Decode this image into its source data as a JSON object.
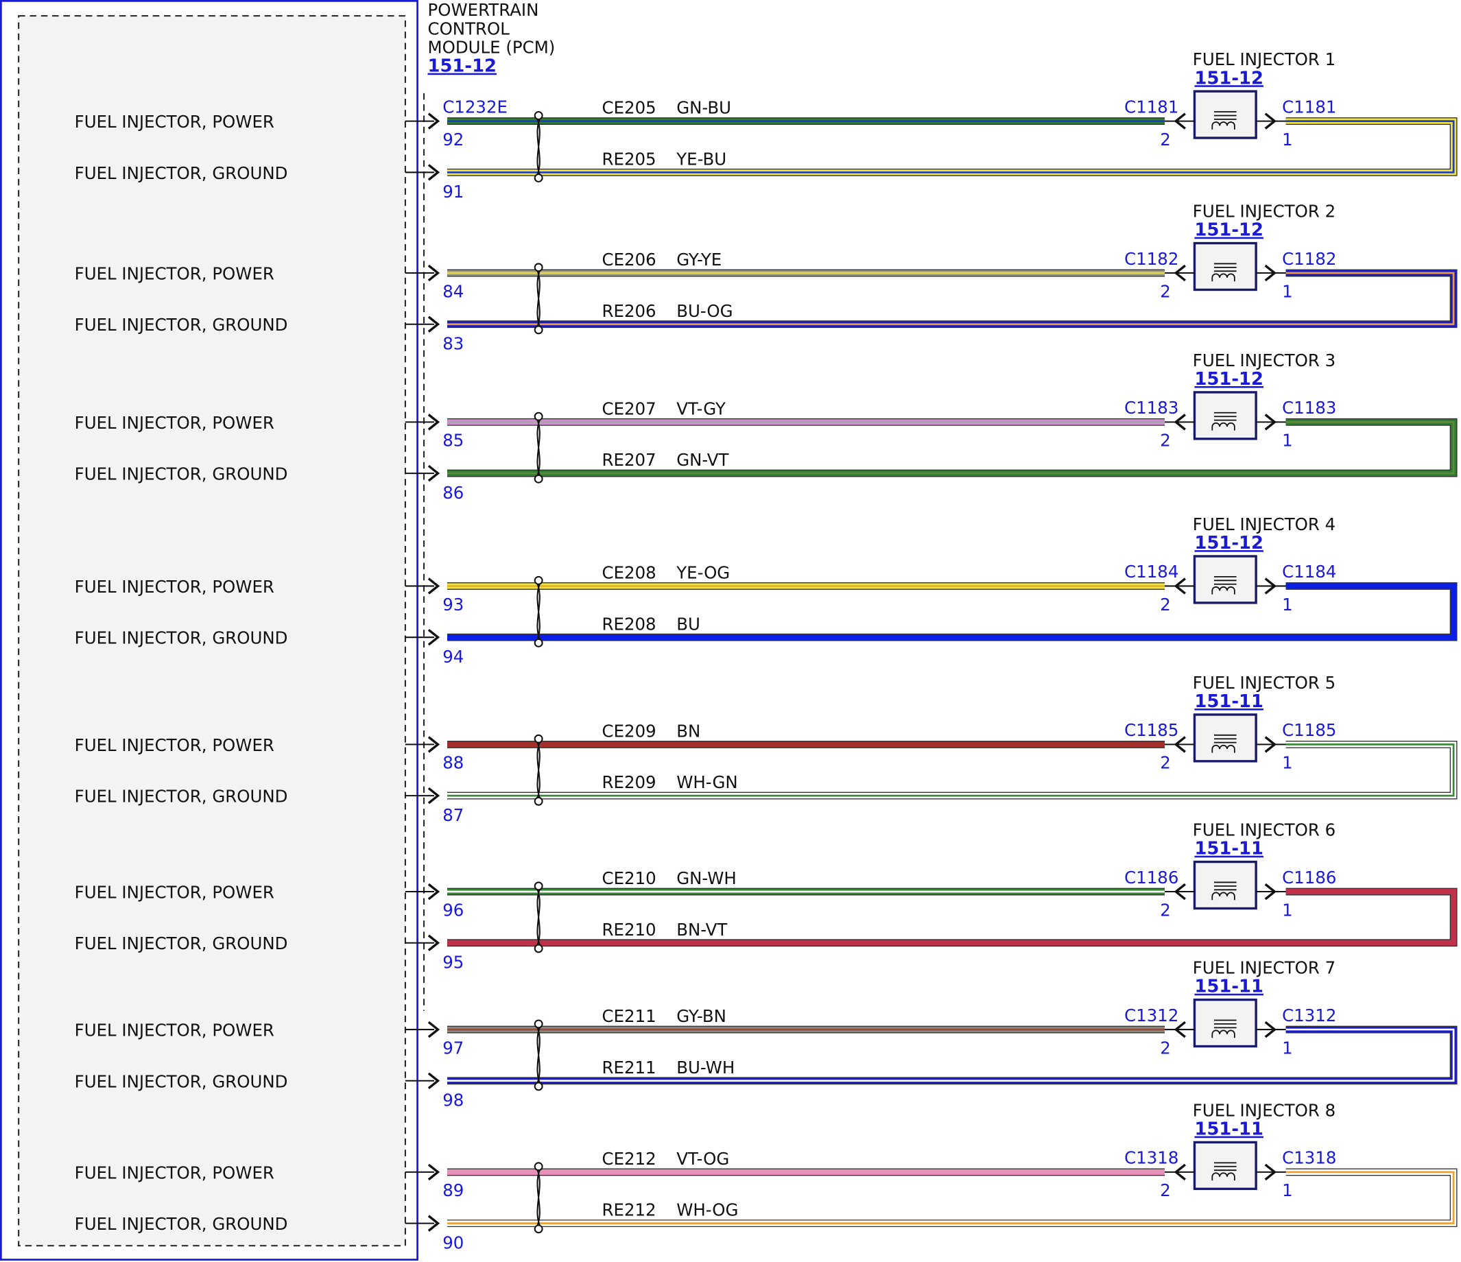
{
  "pcm": {
    "title_lines": [
      "POWERTRAIN",
      "CONTROL",
      "MODULE (PCM)"
    ],
    "ref": "151-12",
    "connector": "C1232E"
  },
  "groups": [
    {
      "power_label": "FUEL INJECTOR, POWER",
      "ground_label": "FUEL INJECTOR, GROUND",
      "power_pin": "92",
      "ground_pin": "91",
      "power_circuit": "CE205",
      "power_code": "GN-BU",
      "ground_circuit": "RE205",
      "ground_code": "YE-BU",
      "power_colors": [
        "#2e7d32",
        "#1a3fd0"
      ],
      "ground_colors": [
        "#f2e43a",
        "#1a3fd0"
      ],
      "injector": "FUEL INJECTOR 1",
      "injector_ref": "151-12",
      "injector_connector": "C1181",
      "pin_a": "2",
      "pin_b": "1"
    },
    {
      "power_label": "FUEL INJECTOR, POWER",
      "ground_label": "FUEL INJECTOR, GROUND",
      "power_pin": "84",
      "ground_pin": "83",
      "power_circuit": "CE206",
      "power_code": "GY-YE",
      "ground_circuit": "RE206",
      "ground_code": "BU-OG",
      "power_colors": [
        "#9a9a8a",
        "#e6d84a"
      ],
      "ground_colors": [
        "#1a1ad0",
        "#f09a30"
      ],
      "injector": "FUEL INJECTOR 2",
      "injector_ref": "151-12",
      "injector_connector": "C1182",
      "pin_a": "2",
      "pin_b": "1"
    },
    {
      "power_label": "FUEL INJECTOR, POWER",
      "ground_label": "FUEL INJECTOR, GROUND",
      "power_pin": "85",
      "ground_pin": "86",
      "power_circuit": "CE207",
      "power_code": "VT-GY",
      "ground_circuit": "RE207",
      "ground_code": "GN-VT",
      "power_colors": [
        "#d58ad5",
        "#b0a0b0"
      ],
      "ground_colors": [
        "#2e7d32",
        "#5a8a3a"
      ],
      "injector": "FUEL INJECTOR 3",
      "injector_ref": "151-12",
      "injector_connector": "C1183",
      "pin_a": "2",
      "pin_b": "1"
    },
    {
      "power_label": "FUEL INJECTOR, POWER",
      "ground_label": "FUEL INJECTOR, GROUND",
      "power_pin": "93",
      "ground_pin": "94",
      "power_circuit": "CE208",
      "power_code": "YE-OG",
      "ground_circuit": "RE208",
      "ground_code": "BU",
      "power_colors": [
        "#f2e43a",
        "#e8b030"
      ],
      "ground_colors": [
        "#0a1ee6",
        "#0a1ee6"
      ],
      "injector": "FUEL INJECTOR 4",
      "injector_ref": "151-12",
      "injector_connector": "C1184",
      "pin_a": "2",
      "pin_b": "1"
    },
    {
      "power_label": "FUEL INJECTOR, POWER",
      "ground_label": "FUEL INJECTOR, GROUND",
      "power_pin": "88",
      "ground_pin": "87",
      "power_circuit": "CE209",
      "power_code": "BN",
      "ground_circuit": "RE209",
      "ground_code": "WH-GN",
      "power_colors": [
        "#a3302c",
        "#a3302c"
      ],
      "ground_colors": [
        "#ffffff",
        "#3a8a3a"
      ],
      "injector": "FUEL INJECTOR 5",
      "injector_ref": "151-11",
      "injector_connector": "C1185",
      "pin_a": "2",
      "pin_b": "1"
    },
    {
      "power_label": "FUEL INJECTOR, POWER",
      "ground_label": "FUEL INJECTOR, GROUND",
      "power_pin": "96",
      "ground_pin": "95",
      "power_circuit": "CE210",
      "power_code": "GN-WH",
      "ground_circuit": "RE210",
      "ground_code": "BN-VT",
      "power_colors": [
        "#2e8a2e",
        "#ffffff"
      ],
      "ground_colors": [
        "#c0304a",
        "#c0304a"
      ],
      "injector": "FUEL INJECTOR 6",
      "injector_ref": "151-11",
      "injector_connector": "C1186",
      "pin_a": "2",
      "pin_b": "1"
    },
    {
      "power_label": "FUEL INJECTOR, POWER",
      "ground_label": "FUEL INJECTOR, GROUND",
      "power_pin": "97",
      "ground_pin": "98",
      "power_circuit": "CE211",
      "power_code": "GY-BN",
      "ground_circuit": "RE211",
      "ground_code": "BU-WH",
      "power_colors": [
        "#8a8a80",
        "#9a4a3a"
      ],
      "ground_colors": [
        "#1a1ad0",
        "#ffffff"
      ],
      "injector": "FUEL INJECTOR 7",
      "injector_ref": "151-11",
      "injector_connector": "C1312",
      "pin_a": "2",
      "pin_b": "1"
    },
    {
      "power_label": "FUEL INJECTOR, POWER",
      "ground_label": "FUEL INJECTOR, GROUND",
      "power_pin": "89",
      "ground_pin": "90",
      "power_circuit": "CE212",
      "power_code": "VT-OG",
      "ground_circuit": "RE212",
      "ground_code": "WH-OG",
      "power_colors": [
        "#e890b8",
        "#e890b8"
      ],
      "ground_colors": [
        "#ffffff",
        "#f0a030"
      ],
      "injector": "FUEL INJECTOR 8",
      "injector_ref": "151-11",
      "injector_connector": "C1318",
      "pin_a": "2",
      "pin_b": "1"
    }
  ]
}
